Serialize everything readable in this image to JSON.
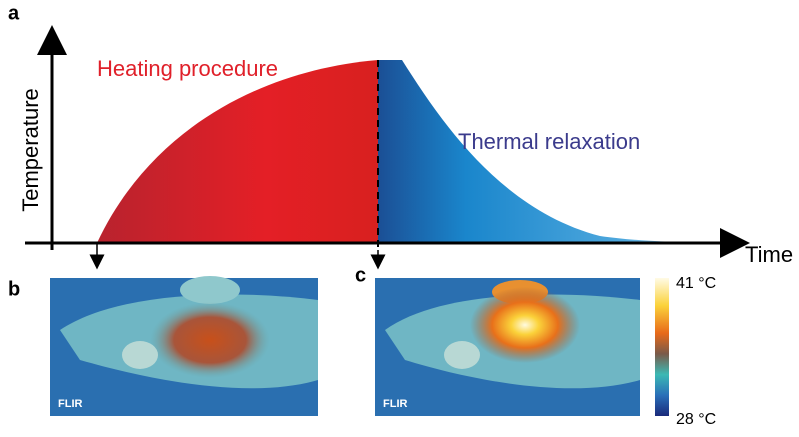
{
  "panels": {
    "a": "a",
    "b": "b",
    "c": "c"
  },
  "axes": {
    "y_label": "Temperature",
    "x_label": "Time"
  },
  "annotations": {
    "heating": "Heating procedure",
    "relaxation": "Thermal relaxation"
  },
  "images": {
    "b_logo": "FLIR",
    "c_logo": "FLIR"
  },
  "colorbar": {
    "max_label": "41 °C",
    "min_label": "28 °C"
  }
}
